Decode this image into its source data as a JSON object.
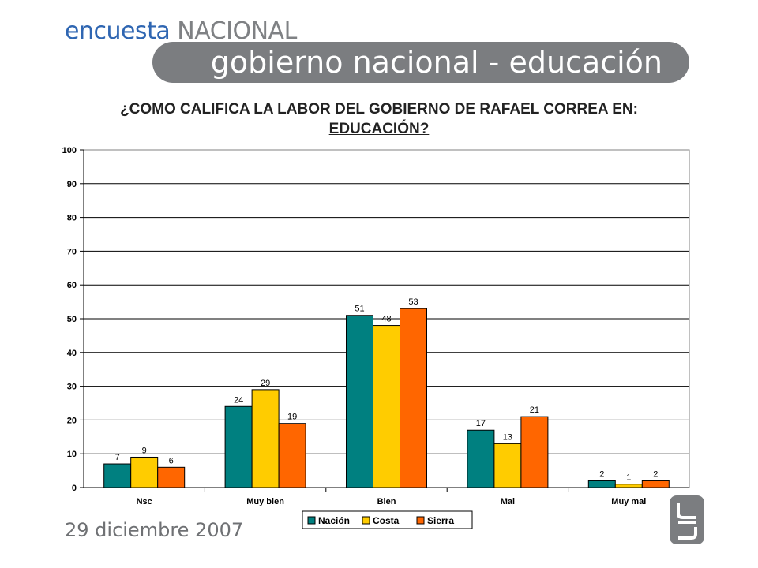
{
  "header": {
    "brand_word1": "encuesta",
    "brand_word2": "NACIONAL",
    "banner_title": "gobierno nacional - educación"
  },
  "question": {
    "line1": "¿COMO CALIFICA LA LABOR DEL GOBIERNO DE RAFAEL CORREA EN:",
    "line2": "EDUCACIÓN?"
  },
  "footer": {
    "date": "29 diciembre 2007"
  },
  "colors": {
    "brand_blue": "#2f66b2",
    "banner_gray": "#7b7d80",
    "series_nacion": "#008080",
    "series_costa": "#ffcc00",
    "series_sierra": "#ff6600"
  },
  "chart_data": {
    "type": "bar",
    "categories": [
      "Nsc",
      "Muy bien",
      "Bien",
      "Mal",
      "Muy mal"
    ],
    "series": [
      {
        "name": "Nación",
        "values": [
          7,
          24,
          51,
          17,
          2
        ],
        "color": "#008080"
      },
      {
        "name": "Costa",
        "values": [
          9,
          29,
          48,
          13,
          1
        ],
        "color": "#ffcc00"
      },
      {
        "name": "Sierra",
        "values": [
          6,
          19,
          53,
          21,
          2
        ],
        "color": "#ff6600"
      }
    ],
    "ylim": [
      0,
      100
    ],
    "yticks": [
      0,
      10,
      20,
      30,
      40,
      50,
      60,
      70,
      80,
      90,
      100
    ],
    "grid": true,
    "legend_position": "bottom"
  }
}
